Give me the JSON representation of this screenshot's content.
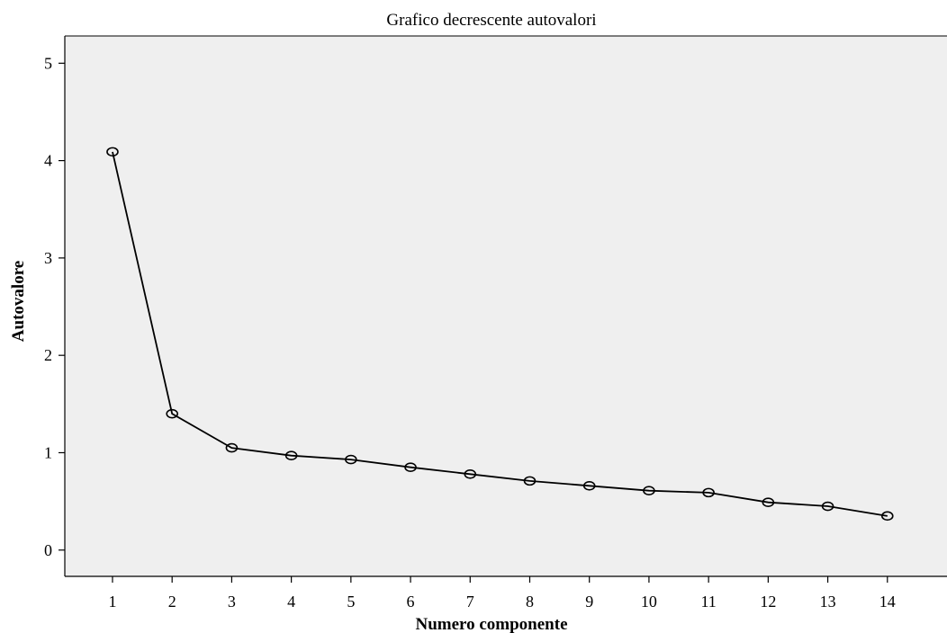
{
  "chart_data": {
    "type": "line",
    "title": "Grafico decrescente autovalori",
    "xlabel": "Numero componente",
    "ylabel": "Autovalore",
    "categories": [
      "1",
      "2",
      "3",
      "4",
      "5",
      "6",
      "7",
      "8",
      "9",
      "10",
      "11",
      "12",
      "13",
      "14"
    ],
    "x": [
      1,
      2,
      3,
      4,
      5,
      6,
      7,
      8,
      9,
      10,
      11,
      12,
      13,
      14
    ],
    "values": [
      4.09,
      1.4,
      1.05,
      0.97,
      0.93,
      0.85,
      0.78,
      0.71,
      0.66,
      0.61,
      0.59,
      0.49,
      0.45,
      0.35
    ],
    "yticks": [
      "0",
      "1",
      "2",
      "3",
      "4",
      "5"
    ],
    "ylim": [
      -0.27,
      5.28
    ],
    "xlim": [
      0.2,
      15.0
    ],
    "grid": false,
    "marker": "open-circle",
    "plot_background": "#efefef",
    "line_color": "#000000"
  }
}
